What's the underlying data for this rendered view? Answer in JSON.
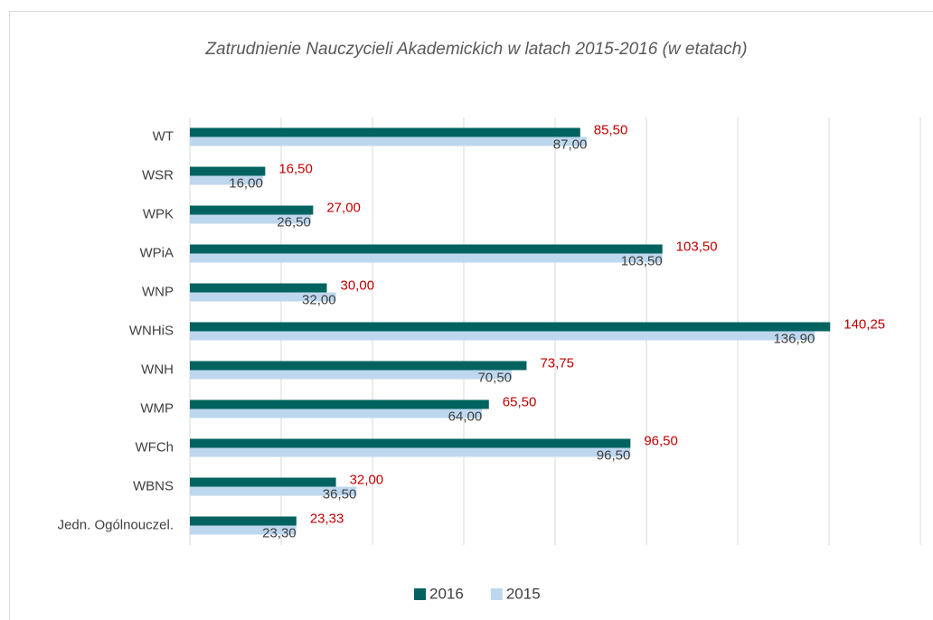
{
  "chart_data": {
    "type": "bar",
    "orientation": "horizontal",
    "title": "Zatrudnienie Nauczycieli Akademickich w latach 2015-2016 (w etatach)",
    "categories": [
      "WT",
      "WSR",
      "WPK",
      "WPiA",
      "WNP",
      "WNHiS",
      "WNH",
      "WMP",
      "WFCh",
      "WBNS",
      "Jedn. Ogólnouczel."
    ],
    "series": [
      {
        "name": "2016",
        "color": "#00635f",
        "values": [
          85.5,
          16.5,
          27,
          103.5,
          30,
          140.25,
          73.75,
          65.5,
          96.5,
          32,
          23.33
        ],
        "value_labels": [
          "85,50",
          "16,50",
          "27,00",
          "103,50",
          "30,00",
          "140,25",
          "73,75",
          "65,50",
          "96,50",
          "32,00",
          "23,33"
        ]
      },
      {
        "name": "2015",
        "color": "#bdd7ee",
        "values": [
          87,
          16,
          26.5,
          103.5,
          32,
          136.9,
          70.5,
          64,
          96.5,
          36.5,
          23.3
        ],
        "value_labels": [
          "87,00",
          "16,00",
          "26,50",
          "103,50",
          "32,00",
          "136,90",
          "70,50",
          "64,00",
          "96,50",
          "36,50",
          "23,30"
        ]
      }
    ],
    "xlim": [
      0,
      160
    ],
    "xticks": [
      0,
      20,
      40,
      60,
      80,
      100,
      120,
      140,
      160
    ],
    "grid": true,
    "legend": "bottom"
  }
}
